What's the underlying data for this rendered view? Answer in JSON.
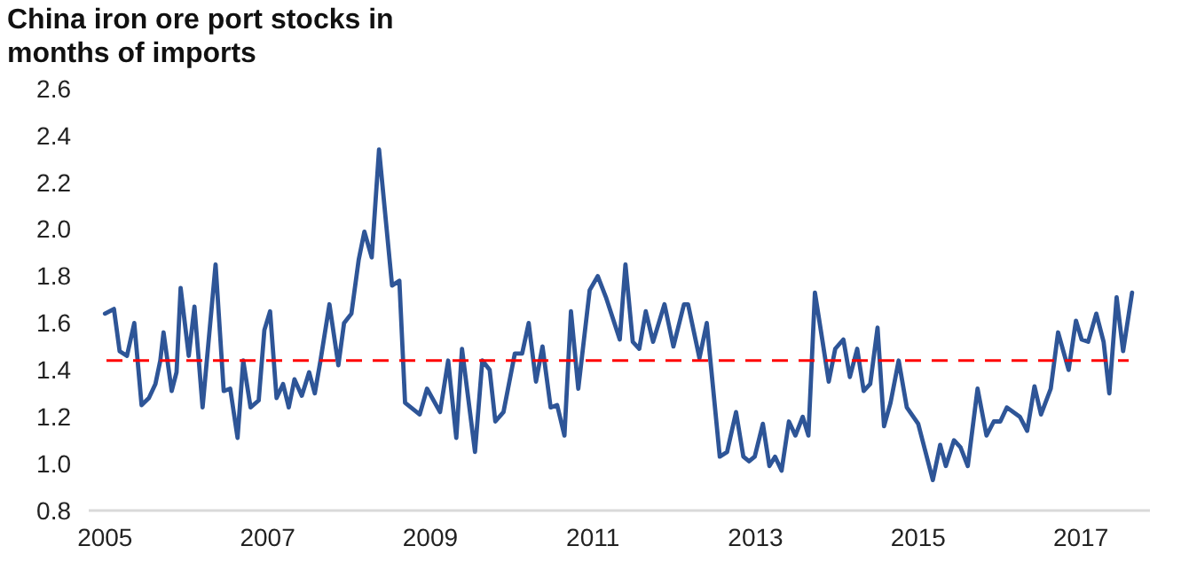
{
  "chart_data": {
    "type": "line",
    "title": "China iron ore port stocks in months of imports",
    "xlim": [
      2004.8,
      2017.85
    ],
    "xticks": [
      2005,
      2007,
      2009,
      2011,
      2013,
      2015,
      2017
    ],
    "ylim": [
      0.8,
      2.6
    ],
    "yticks": [
      {
        "value": 0.8,
        "label": "0.8"
      },
      {
        "value": 1.0,
        "label": "1.0"
      },
      {
        "value": 1.2,
        "label": "1.2"
      },
      {
        "value": 1.4,
        "label": "1.4"
      },
      {
        "value": 1.6,
        "label": "1.6"
      },
      {
        "value": 1.8,
        "label": "1.8"
      },
      {
        "value": 2.0,
        "label": "2.0"
      },
      {
        "value": 2.2,
        "label": "2.2"
      },
      {
        "value": 2.4,
        "label": "2.4"
      },
      {
        "value": 2.6,
        "label": "2.6"
      }
    ],
    "grid": false,
    "line_style": "solid",
    "marker": "none",
    "ref_lines": [
      {
        "axis": "y",
        "value": 1.44,
        "color": "#ff0000",
        "line_style": "dashed"
      }
    ],
    "series": [
      {
        "color": "#2e5597",
        "x": [
          2005.0,
          2005.11,
          2005.18,
          2005.27,
          2005.36,
          2005.45,
          2005.54,
          2005.62,
          2005.68,
          2005.72,
          2005.82,
          2005.88,
          2005.93,
          2006.03,
          2006.1,
          2006.2,
          2006.36,
          2006.46,
          2006.54,
          2006.63,
          2006.7,
          2006.79,
          2006.89,
          2006.96,
          2007.03,
          2007.11,
          2007.19,
          2007.26,
          2007.33,
          2007.42,
          2007.51,
          2007.58,
          2007.65,
          2007.76,
          2007.87,
          2007.94,
          2008.03,
          2008.12,
          2008.19,
          2008.28,
          2008.37,
          2008.53,
          2008.62,
          2008.69,
          2008.87,
          2008.96,
          2009.12,
          2009.22,
          2009.32,
          2009.39,
          2009.55,
          2009.64,
          2009.73,
          2009.8,
          2009.9,
          2010.04,
          2010.13,
          2010.21,
          2010.3,
          2010.38,
          2010.48,
          2010.56,
          2010.65,
          2010.73,
          2010.82,
          2010.96,
          2011.06,
          2011.16,
          2011.33,
          2011.4,
          2011.49,
          2011.57,
          2011.65,
          2011.74,
          2011.88,
          2011.99,
          2012.12,
          2012.17,
          2012.31,
          2012.4,
          2012.56,
          2012.65,
          2012.76,
          2012.85,
          2012.92,
          2012.99,
          2013.09,
          2013.17,
          2013.24,
          2013.32,
          2013.41,
          2013.49,
          2013.58,
          2013.65,
          2013.73,
          2013.82,
          2013.9,
          2013.98,
          2014.08,
          2014.16,
          2014.25,
          2014.33,
          2014.41,
          2014.5,
          2014.58,
          2014.66,
          2014.76,
          2014.86,
          2015.0,
          2015.18,
          2015.27,
          2015.34,
          2015.44,
          2015.52,
          2015.61,
          2015.73,
          2015.84,
          2015.93,
          2016.01,
          2016.09,
          2016.25,
          2016.34,
          2016.43,
          2016.51,
          2016.63,
          2016.72,
          2016.85,
          2016.94,
          2017.01,
          2017.09,
          2017.19,
          2017.28,
          2017.35,
          2017.44,
          2017.52,
          2017.63
        ],
        "values": [
          1.64,
          1.66,
          1.48,
          1.46,
          1.6,
          1.25,
          1.28,
          1.34,
          1.44,
          1.56,
          1.31,
          1.39,
          1.75,
          1.46,
          1.67,
          1.24,
          1.85,
          1.31,
          1.32,
          1.11,
          1.44,
          1.24,
          1.27,
          1.57,
          1.65,
          1.28,
          1.34,
          1.24,
          1.36,
          1.29,
          1.39,
          1.3,
          1.44,
          1.68,
          1.42,
          1.6,
          1.64,
          1.87,
          1.99,
          1.88,
          2.34,
          1.76,
          1.78,
          1.26,
          1.21,
          1.32,
          1.22,
          1.44,
          1.11,
          1.49,
          1.05,
          1.44,
          1.4,
          1.18,
          1.22,
          1.47,
          1.47,
          1.6,
          1.35,
          1.5,
          1.24,
          1.25,
          1.12,
          1.65,
          1.32,
          1.74,
          1.8,
          1.71,
          1.53,
          1.85,
          1.52,
          1.49,
          1.65,
          1.52,
          1.68,
          1.5,
          1.68,
          1.68,
          1.45,
          1.6,
          1.03,
          1.05,
          1.22,
          1.03,
          1.01,
          1.03,
          1.17,
          0.99,
          1.03,
          0.97,
          1.18,
          1.12,
          1.2,
          1.12,
          1.73,
          1.53,
          1.35,
          1.49,
          1.53,
          1.37,
          1.49,
          1.31,
          1.34,
          1.58,
          1.16,
          1.26,
          1.44,
          1.24,
          1.17,
          0.93,
          1.08,
          0.99,
          1.1,
          1.07,
          0.99,
          1.32,
          1.12,
          1.18,
          1.18,
          1.24,
          1.2,
          1.14,
          1.33,
          1.21,
          1.32,
          1.56,
          1.4,
          1.61,
          1.53,
          1.52,
          1.64,
          1.52,
          1.3,
          1.71,
          1.48,
          1.73
        ]
      }
    ]
  }
}
